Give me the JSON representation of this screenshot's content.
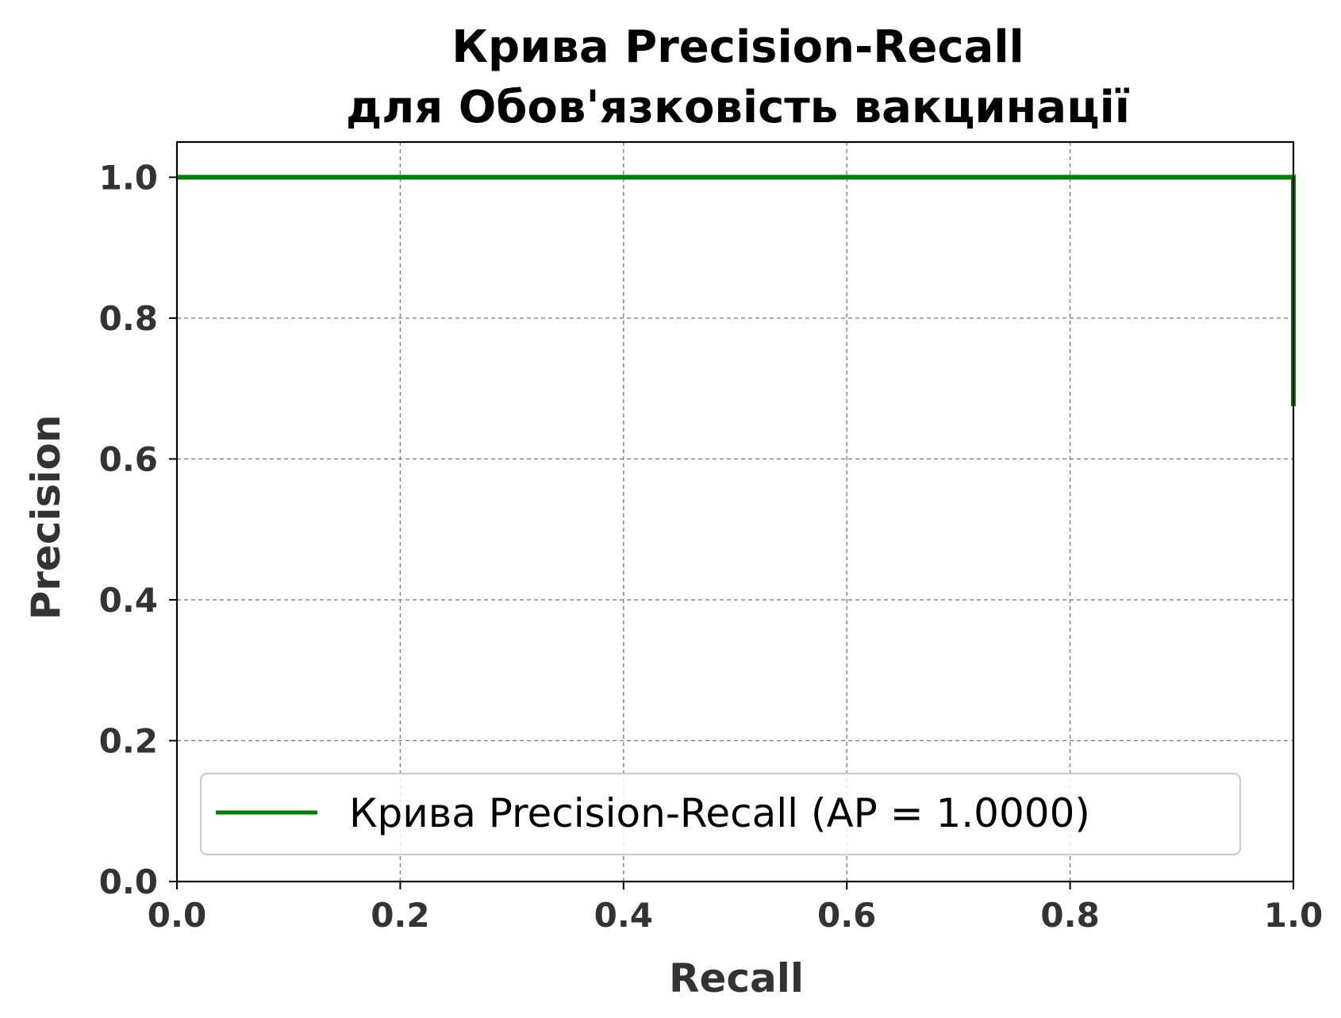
{
  "chart_data": {
    "type": "line",
    "title_line1": "Крива Precision-Recall",
    "title_line2": "для Обов'язковість вакцинації",
    "xlabel": "Recall",
    "ylabel": "Precision",
    "xlim": [
      0.0,
      1.0
    ],
    "ylim": [
      0.0,
      1.05
    ],
    "xticks": [
      0.0,
      0.2,
      0.4,
      0.6,
      0.8,
      1.0
    ],
    "xtick_labels": [
      "0.0",
      "0.2",
      "0.4",
      "0.6",
      "0.8",
      "1.0"
    ],
    "yticks": [
      0.0,
      0.2,
      0.4,
      0.6,
      0.8,
      1.0
    ],
    "ytick_labels": [
      "0.0",
      "0.2",
      "0.4",
      "0.6",
      "0.8",
      "1.0"
    ],
    "grid": true,
    "legend_position": "lower-left",
    "series": [
      {
        "name": "Крива Precision-Recall (AP = 1.0000)",
        "color": "#008000",
        "x": [
          0.0,
          1.0,
          1.0
        ],
        "y": [
          1.0,
          1.0,
          0.675
        ]
      }
    ]
  }
}
